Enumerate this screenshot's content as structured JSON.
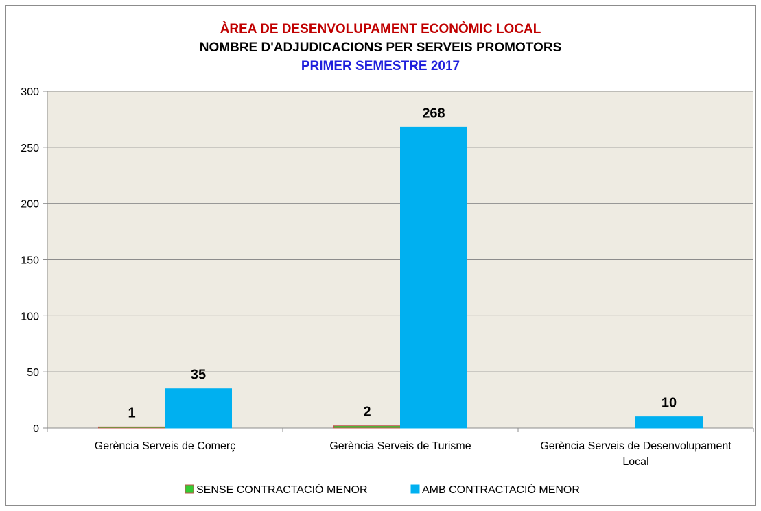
{
  "chart_data": {
    "type": "bar",
    "title_lines": [
      {
        "text": "ÀREA DE DESENVOLUPAMENT ECONÒMIC LOCAL",
        "color": "#c00000"
      },
      {
        "text": "NOMBRE D'ADJUDICACIONS PER SERVEIS PROMOTORS",
        "color": "#000000"
      },
      {
        "text": "PRIMER SEMESTRE 2017",
        "color": "#1f1fdc"
      }
    ],
    "categories": [
      [
        "Gerència Serveis de Comerç"
      ],
      [
        "Gerència Serveis de Turisme"
      ],
      [
        "Gerència Serveis de Desenvolupament",
        "Local"
      ]
    ],
    "series": [
      {
        "name": "SENSE CONTRACTACIÓ MENOR",
        "values": [
          1,
          2,
          null
        ],
        "labels": [
          "1",
          "2",
          ""
        ],
        "color": "#33cc33",
        "edge": "#c0504d"
      },
      {
        "name": "AMB CONTRACTACIÓ MENOR",
        "values": [
          35,
          268,
          10
        ],
        "labels": [
          "35",
          "268",
          "10"
        ],
        "color": "#00b0f0",
        "edge": "#00b0f0"
      }
    ],
    "ylim": [
      0,
      300
    ],
    "yticks": [
      "0",
      "50",
      "100",
      "150",
      "200",
      "250",
      "300"
    ],
    "xlabel": "",
    "ylabel": "",
    "grid": true,
    "plot_background": "#eeebe2",
    "legend_position": "bottom"
  }
}
